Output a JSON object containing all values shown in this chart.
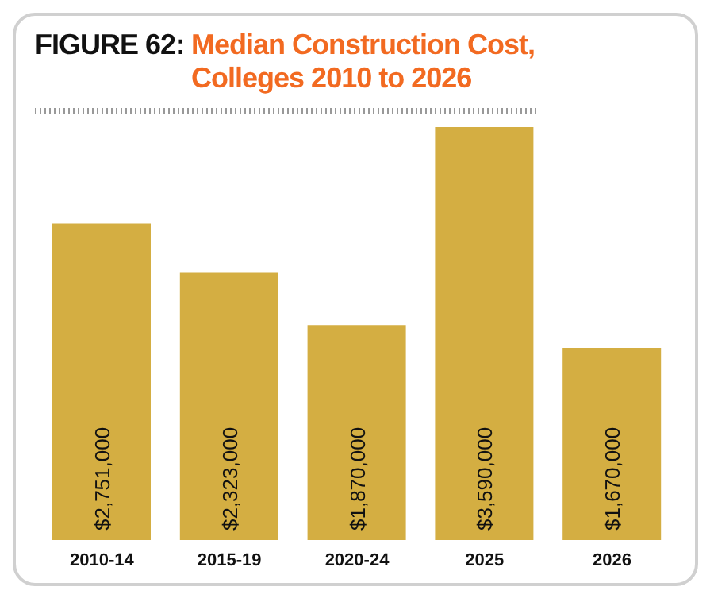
{
  "chart_data": {
    "type": "bar",
    "title": "FIGURE 62: Median Construction Cost, Colleges 2010 to 2026",
    "categories": [
      "2010-14",
      "2015-19",
      "2020-24",
      "2025",
      "2026"
    ],
    "values": [
      2751000,
      2323000,
      1870000,
      3590000,
      1670000
    ],
    "value_labels": [
      "$2,751,000",
      "$2,323,000",
      "$1,870,000",
      "$3,590,000",
      "$1,670,000"
    ],
    "color": "#d4ae42",
    "grid": false,
    "legend": false
  }
}
